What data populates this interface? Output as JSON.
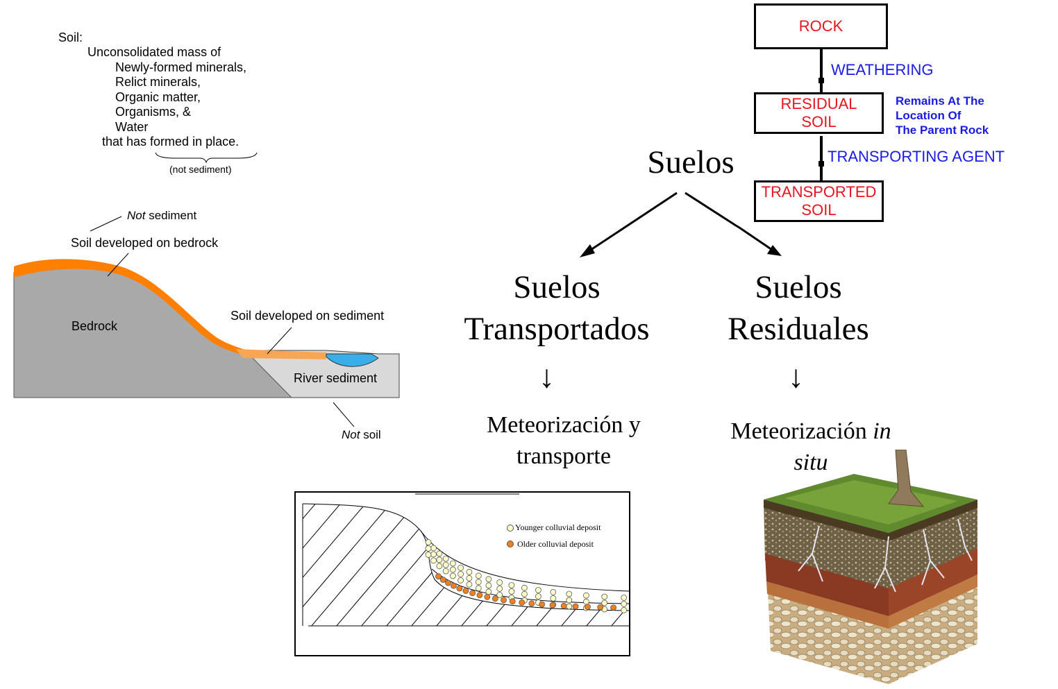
{
  "definition": {
    "heading": "Soil:",
    "line1": "Unconsolidated mass of",
    "items": [
      "Newly-formed minerals,",
      "Relict minerals,",
      "Organic matter,",
      "Organisms, &",
      "Water"
    ],
    "closing": "that has formed in place.",
    "note": "(not sediment)"
  },
  "cross_section": {
    "not_sediment_italic": "Not",
    "not_sediment_rest": " sediment",
    "soil_bedrock": "Soil developed on bedrock",
    "bedrock": "Bedrock",
    "soil_sediment": "Soil developed on sediment",
    "river_sediment": "River sediment",
    "not_soil_italic": "Not",
    "not_soil_rest": " soil",
    "colors": {
      "bedrock": "#a9a9a9",
      "soil": "#ff7f00",
      "sediment_soil": "#f9a654",
      "river_sediment": "#d9d9d9",
      "water": "#3aaee8"
    }
  },
  "flowchart": {
    "boxes": [
      "ROCK",
      "RESIDUAL SOIL",
      "TRANSPORTED SOIL"
    ],
    "edges": [
      "WEATHERING",
      "TRANSPORTING AGENT"
    ],
    "note": [
      "Remains At The",
      "Location Of",
      "The Parent Rock"
    ],
    "box_color": "#e8141e",
    "edge_color": "#1a1ae6"
  },
  "tree": {
    "root": "Suelos",
    "left": {
      "line1": "Suelos",
      "line2": "Transportados",
      "process_line1": "Meteorización y",
      "process_line2": "transporte"
    },
    "right": {
      "line1": "Suelos",
      "line2": "Residuales",
      "process_prefix": "Meteorización ",
      "process_italic1": "in",
      "process_italic2": "situ"
    },
    "down_arrow": "↓"
  },
  "colluvium": {
    "legend": [
      "Younger colluvial deposit",
      "Older colluvial deposit"
    ],
    "colors": {
      "younger": "#ffffcc",
      "older": "#f08020"
    }
  },
  "soil_block": {
    "icon": "soil-profile-block-icon"
  }
}
